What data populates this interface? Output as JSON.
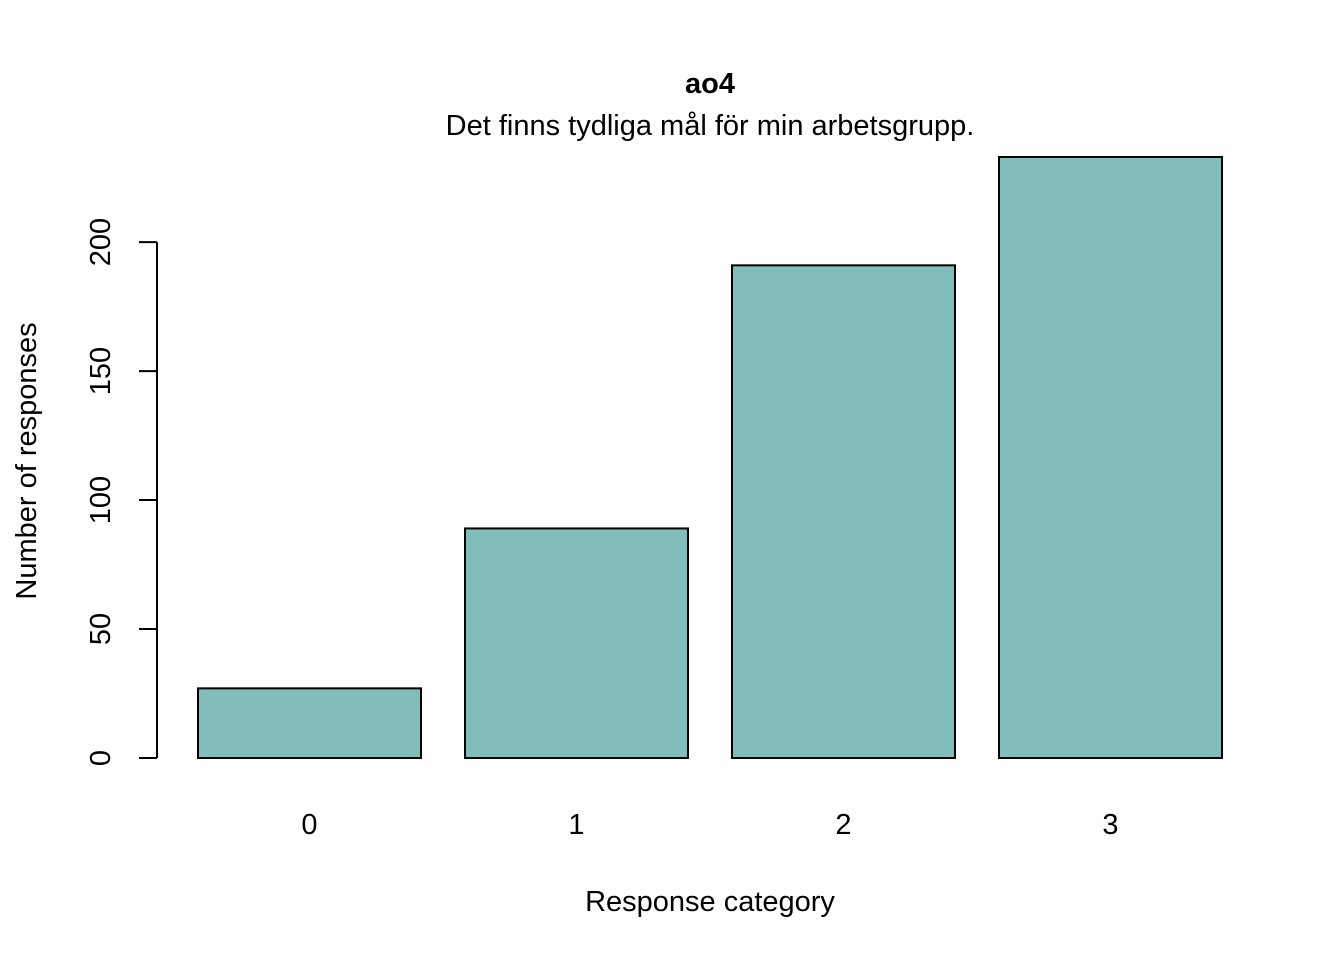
{
  "chart_data": {
    "type": "bar",
    "title": "ao4",
    "subtitle": "Det finns tydliga mål för min arbetsgrupp.",
    "xlabel": "Response category",
    "ylabel": "Number of responses",
    "categories": [
      "0",
      "1",
      "2",
      "3"
    ],
    "values": [
      27,
      89,
      191,
      233
    ],
    "ylim": [
      0,
      233
    ],
    "yticks": [
      0,
      50,
      100,
      150,
      200
    ],
    "ytick_labels": [
      "0",
      "50",
      "100",
      "150",
      "200"
    ],
    "grid": false,
    "legend": "none",
    "bar_color": "#80bdbb",
    "bar_edge_color": "#000000"
  }
}
